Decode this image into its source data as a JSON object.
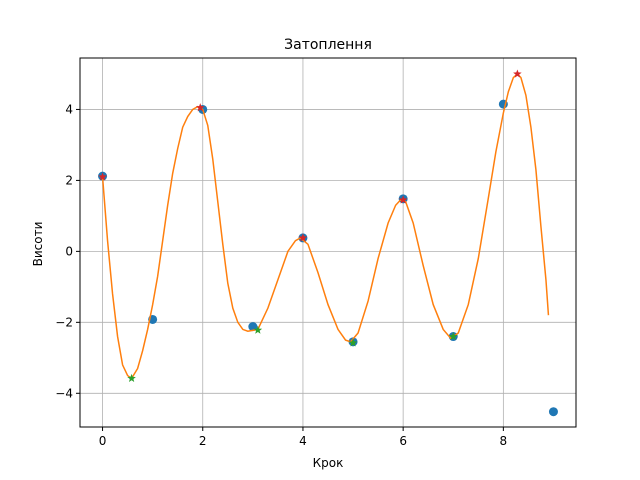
{
  "chart_data": {
    "type": "scatter",
    "title": "Затоплення",
    "xlabel": "Крок",
    "ylabel": "Висоти",
    "xlim": [
      -0.45,
      9.45
    ],
    "ylim": [
      -4.95,
      5.45
    ],
    "xticks": [
      0,
      2,
      4,
      6,
      8
    ],
    "yticks": [
      -4,
      -2,
      0,
      2,
      4
    ],
    "grid": true,
    "series": [
      {
        "kind": "scatter",
        "color": "#1f77b4",
        "points": [
          [
            0,
            2.12
          ],
          [
            1,
            -1.92
          ],
          [
            2,
            4.0
          ],
          [
            3,
            -2.12
          ],
          [
            4,
            0.38
          ],
          [
            5,
            -2.55
          ],
          [
            6,
            1.48
          ],
          [
            7,
            -2.4
          ],
          [
            8,
            4.15
          ],
          [
            9,
            -4.52
          ]
        ]
      },
      {
        "kind": "line",
        "color": "#ff7f0e",
        "points": [
          [
            0.0,
            2.1
          ],
          [
            0.1,
            0.3
          ],
          [
            0.2,
            -1.2
          ],
          [
            0.3,
            -2.4
          ],
          [
            0.4,
            -3.2
          ],
          [
            0.5,
            -3.5
          ],
          [
            0.58,
            -3.58
          ],
          [
            0.7,
            -3.3
          ],
          [
            0.8,
            -2.8
          ],
          [
            0.9,
            -2.2
          ],
          [
            1.0,
            -1.5
          ],
          [
            1.1,
            -0.7
          ],
          [
            1.2,
            0.3
          ],
          [
            1.3,
            1.3
          ],
          [
            1.4,
            2.2
          ],
          [
            1.5,
            2.9
          ],
          [
            1.6,
            3.5
          ],
          [
            1.7,
            3.8
          ],
          [
            1.8,
            4.0
          ],
          [
            1.9,
            4.08
          ],
          [
            2.0,
            4.0
          ],
          [
            2.1,
            3.55
          ],
          [
            2.2,
            2.6
          ],
          [
            2.3,
            1.4
          ],
          [
            2.4,
            0.2
          ],
          [
            2.5,
            -0.9
          ],
          [
            2.6,
            -1.6
          ],
          [
            2.7,
            -2.0
          ],
          [
            2.8,
            -2.2
          ],
          [
            2.9,
            -2.25
          ],
          [
            3.1,
            -2.2
          ],
          [
            3.3,
            -1.6
          ],
          [
            3.5,
            -0.8
          ],
          [
            3.7,
            0.0
          ],
          [
            3.85,
            0.3
          ],
          [
            3.95,
            0.38
          ],
          [
            4.1,
            0.2
          ],
          [
            4.3,
            -0.6
          ],
          [
            4.5,
            -1.5
          ],
          [
            4.7,
            -2.2
          ],
          [
            4.85,
            -2.5
          ],
          [
            4.95,
            -2.55
          ],
          [
            5.1,
            -2.3
          ],
          [
            5.3,
            -1.4
          ],
          [
            5.5,
            -0.2
          ],
          [
            5.7,
            0.8
          ],
          [
            5.85,
            1.3
          ],
          [
            5.95,
            1.45
          ],
          [
            6.05,
            1.4
          ],
          [
            6.2,
            0.8
          ],
          [
            6.4,
            -0.4
          ],
          [
            6.6,
            -1.5
          ],
          [
            6.8,
            -2.2
          ],
          [
            6.95,
            -2.45
          ],
          [
            7.1,
            -2.3
          ],
          [
            7.3,
            -1.5
          ],
          [
            7.5,
            -0.2
          ],
          [
            7.7,
            1.5
          ],
          [
            7.85,
            2.8
          ],
          [
            8.0,
            3.9
          ],
          [
            8.1,
            4.5
          ],
          [
            8.2,
            4.9
          ],
          [
            8.28,
            5.0
          ],
          [
            8.35,
            4.9
          ],
          [
            8.45,
            4.4
          ],
          [
            8.55,
            3.5
          ],
          [
            8.65,
            2.3
          ],
          [
            8.75,
            0.7
          ],
          [
            8.85,
            -0.8
          ],
          [
            8.9,
            -1.8
          ]
        ]
      },
      {
        "kind": "scatter",
        "marker": "star",
        "color": "#d62728",
        "points": [
          [
            0,
            2.1
          ],
          [
            1.95,
            4.05
          ],
          [
            4,
            0.38
          ],
          [
            6,
            1.45
          ],
          [
            8.28,
            5.0
          ]
        ]
      },
      {
        "kind": "scatter",
        "marker": "star",
        "color": "#2ca02c",
        "points": [
          [
            0.58,
            -3.58
          ],
          [
            3.1,
            -2.22
          ],
          [
            5.0,
            -2.58
          ],
          [
            7.0,
            -2.4
          ]
        ]
      }
    ]
  }
}
